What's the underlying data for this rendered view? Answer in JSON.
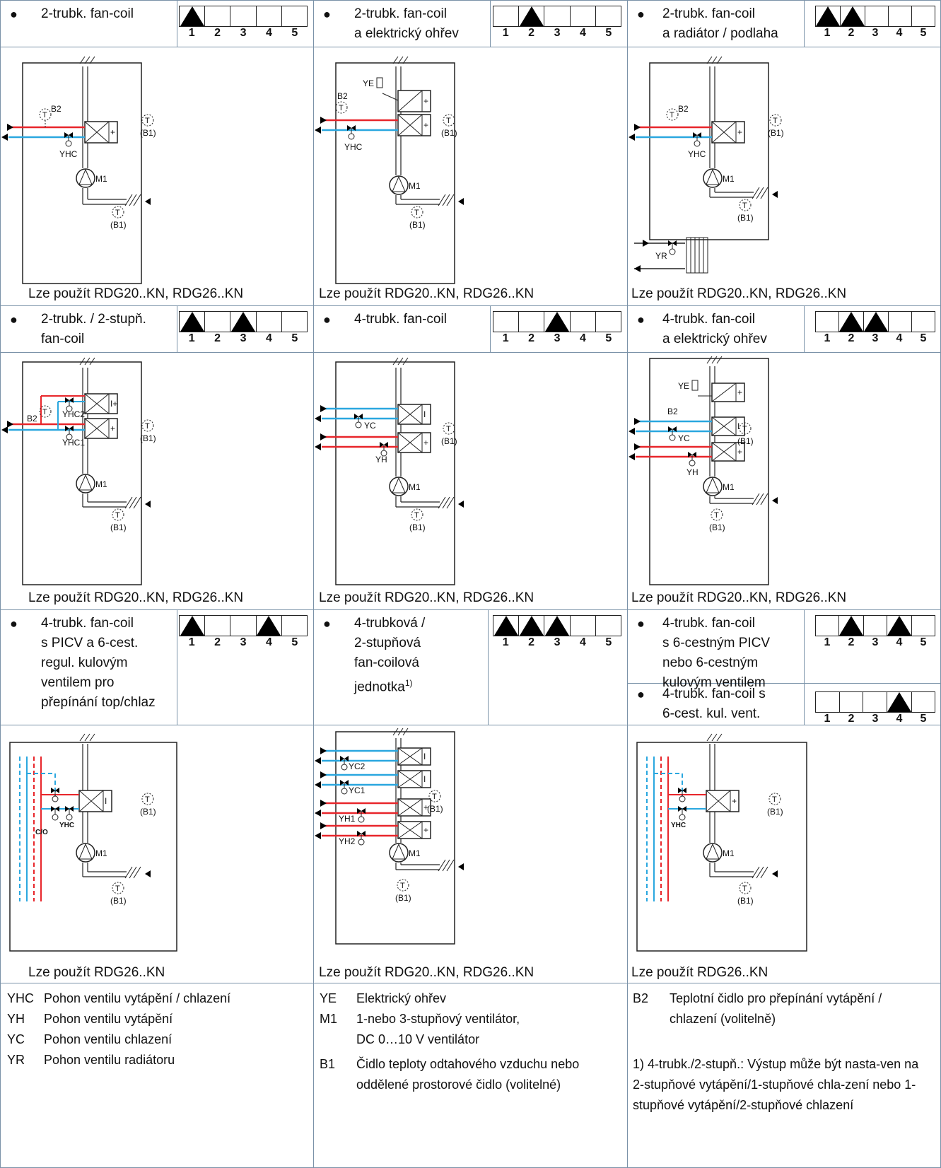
{
  "rows": [
    {
      "cells": [
        {
          "title": "2-trubk. fan-coil",
          "modes": [
            1
          ],
          "usage": "Lze použít RDG20..KN, RDG26..KN",
          "diagram": "A"
        },
        {
          "title": "2-trubk. fan-coil\na elektrický ohřev",
          "modes": [
            2
          ],
          "usage": "Lze použít RDG20..KN, RDG26..KN",
          "diagram": "B"
        },
        {
          "title": "2-trubk. fan-coil\na radiátor / podlaha",
          "modes": [
            1,
            2
          ],
          "usage": "Lze použít RDG20..KN, RDG26..KN",
          "diagram": "C"
        }
      ]
    },
    {
      "cells": [
        {
          "title": "2-trubk. / 2-stupň.\nfan-coil",
          "modes": [
            1,
            3
          ],
          "usage": "Lze použít RDG20..KN, RDG26..KN",
          "diagram": "D"
        },
        {
          "title": "4-trubk. fan-coil",
          "modes": [
            3
          ],
          "usage": "Lze použít RDG20..KN, RDG26..KN",
          "diagram": "E"
        },
        {
          "title": "4-trubk. fan-coil\na elektrický ohřev",
          "modes": [
            2,
            3
          ],
          "usage": "Lze použít RDG20..KN, RDG26..KN",
          "diagram": "F"
        }
      ]
    },
    {
      "cells": [
        {
          "title": "4-trubk. fan-coil\ns PICV a 6-cest.\nregul. kulovým\nventilem pro\npřepínání top/chlaz",
          "modes": [
            1,
            4
          ],
          "usage": "Lze použít RDG26..KN",
          "diagram": "G"
        },
        {
          "title": "4-trubková /\n2-stupňová\nfan-coilová\njednotka",
          "footnote": "1)",
          "modes": [
            1,
            2,
            3
          ],
          "usage": "Lze použít RDG20..KN, RDG26..KN",
          "diagram": "H"
        },
        {
          "title": "4-trubk. fan-coil\ns 6-cestným PICV\nnebo 6-cestným\nkulovým ventilem",
          "modes": [
            2,
            4
          ],
          "title2": "4-trubk. fan-coil  s\n6-cest. kul. vent.",
          "modes2": [
            4
          ],
          "usage": "Lze použít RDG26..KN",
          "diagram": "I"
        }
      ]
    }
  ],
  "mode_numbers": [
    "1",
    "2",
    "3",
    "4",
    "5"
  ],
  "bullet": "●",
  "labels": {
    "B1": "(B1)",
    "B2": "B2",
    "T": "T",
    "M1": "M1",
    "YHC": "YHC",
    "YE": "YE",
    "YC": "YC",
    "YH": "YH",
    "YR": "YR",
    "YHC1": "YHC1",
    "YHC2": "YHC2",
    "YC1": "YC1",
    "YC2": "YC2",
    "YH1": "YH1",
    "YH2": "YH2",
    "CO": "C/O"
  },
  "legend": {
    "col1": [
      {
        "code": "YHC",
        "text": "Pohon ventilu vytápění / chlazení"
      },
      {
        "code": "YH",
        "text": "Pohon ventilu vytápění"
      },
      {
        "code": "YC",
        "text": "Pohon ventilu chlazení"
      },
      {
        "code": "YR",
        "text": "Pohon ventilu radiátoru"
      }
    ],
    "col2": [
      {
        "code": "YE",
        "text": "Elektrický ohřev"
      },
      {
        "code": "M1",
        "text": "1-nebo 3-stupňový ventilátor,"
      },
      {
        "code": "",
        "text": "DC 0…10 V ventilátor"
      },
      {
        "code": "B1",
        "text": "Čidlo teploty odtahového vzduchu nebo"
      },
      {
        "code": "",
        "text": "oddělené prostorové čidlo (volitelné)"
      }
    ],
    "col3": {
      "code": "B2",
      "text": "Teplotní čidlo pro přepínání vytápění / chlazení (volitelně)",
      "note": "1) 4-trubk./2-stupň.: Výstup může být nasta-ven na 2-stupňové vytápění/1-stupňové chla-zení nebo 1-stupňové vytápění/2-stupňové chlazení"
    }
  },
  "colors": {
    "hot": "#e8262b",
    "cold": "#2aa7df",
    "grid": "#7a92a8",
    "line": "#222222"
  }
}
